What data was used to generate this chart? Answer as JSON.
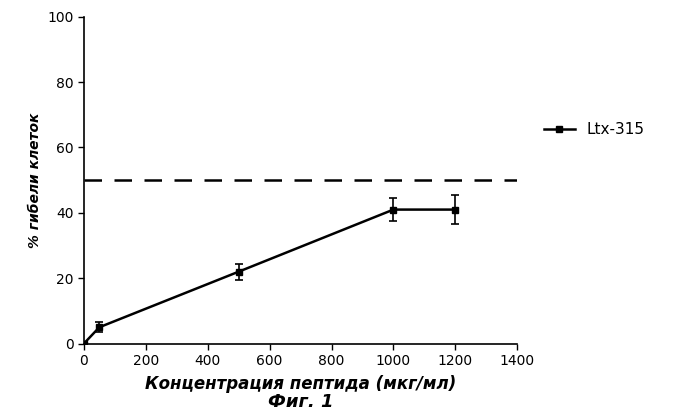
{
  "x": [
    0,
    50,
    500,
    1000,
    1200
  ],
  "y": [
    0,
    5,
    22,
    41,
    41
  ],
  "yerr": [
    0,
    1.5,
    2.5,
    3.5,
    4.5
  ],
  "dashed_y": 50,
  "xlim": [
    0,
    1400
  ],
  "ylim": [
    0,
    100
  ],
  "xticks": [
    0,
    200,
    400,
    600,
    800,
    1000,
    1200,
    1400
  ],
  "yticks": [
    0,
    20,
    40,
    60,
    80,
    100
  ],
  "xlabel": "Концентрация пептида (мкг/мл)",
  "ylabel": "% гибели клеток",
  "legend_label": "Ltx-315",
  "figcaption": "Фиг. 1",
  "line_color": "#000000",
  "dashed_color": "#000000",
  "marker": "s",
  "markersize": 5,
  "linewidth": 1.8,
  "dashed_linewidth": 1.8,
  "xlabel_fontsize": 12,
  "ylabel_fontsize": 10,
  "tick_fontsize": 10,
  "legend_fontsize": 11,
  "caption_fontsize": 13
}
